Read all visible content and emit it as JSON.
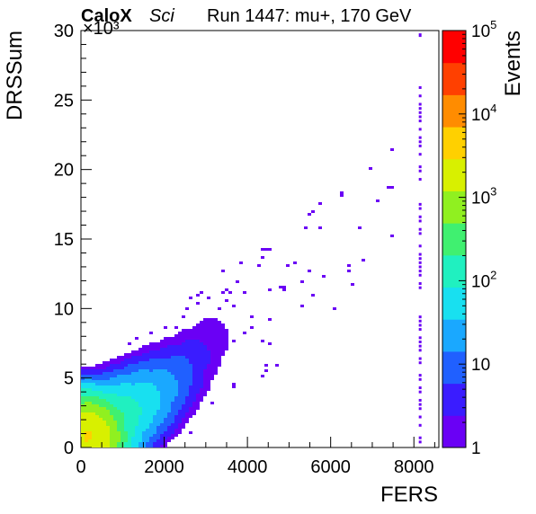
{
  "header": {
    "brand": "CaloX",
    "tag": "Sci",
    "run": "Run 1447: mu+, 170 GeV"
  },
  "chart_data": {
    "type": "heatmap",
    "title": "",
    "xlabel": "FERS",
    "ylabel": "DRSSum",
    "ylabel_multiplier": "×10³",
    "zlabel": "Events",
    "xlim": [
      0,
      8600
    ],
    "ylim": [
      0,
      30000
    ],
    "zscale": "log",
    "zlim": [
      1,
      100000
    ],
    "x_ticks": [
      "0",
      "2000",
      "4000",
      "6000",
      "8000"
    ],
    "y_ticks": [
      "0",
      "5",
      "10",
      "15",
      "20",
      "25",
      "30"
    ],
    "z_tick_exponents": [
      "10",
      "10",
      "10",
      "10",
      "10"
    ],
    "z_tick_labels": [
      {
        "base": "1",
        "exp": ""
      },
      {
        "base": "10",
        "exp": ""
      },
      {
        "base": "10",
        "exp": "2"
      },
      {
        "base": "10",
        "exp": "3"
      },
      {
        "base": "10",
        "exp": "4"
      },
      {
        "base": "10",
        "exp": "5"
      }
    ],
    "colormap": [
      "#6a00f5",
      "#3a1cff",
      "#2060ff",
      "#1aa8ff",
      "#18e0f0",
      "#20f0c0",
      "#40f070",
      "#90f020",
      "#d8f000",
      "#ffd000",
      "#ff8c00",
      "#ff4000",
      "#ff0000"
    ],
    "core": [
      {
        "x": 150,
        "y": 800,
        "count": 3000
      },
      {
        "x": 400,
        "y": 1200,
        "count": 800
      },
      {
        "x": 700,
        "y": 1800,
        "count": 300
      },
      {
        "x": 1100,
        "y": 2600,
        "count": 120
      },
      {
        "x": 1500,
        "y": 3400,
        "count": 60
      },
      {
        "x": 1900,
        "y": 4300,
        "count": 25
      },
      {
        "x": 2300,
        "y": 5300,
        "count": 10
      },
      {
        "x": 2700,
        "y": 6500,
        "count": 4
      },
      {
        "x": 3100,
        "y": 7800,
        "count": 2
      },
      {
        "x": 3600,
        "y": 9200,
        "count": 1
      }
    ],
    "overflow_column_x": 8150,
    "overflow_column_y_range": [
      0,
      26000
    ]
  }
}
